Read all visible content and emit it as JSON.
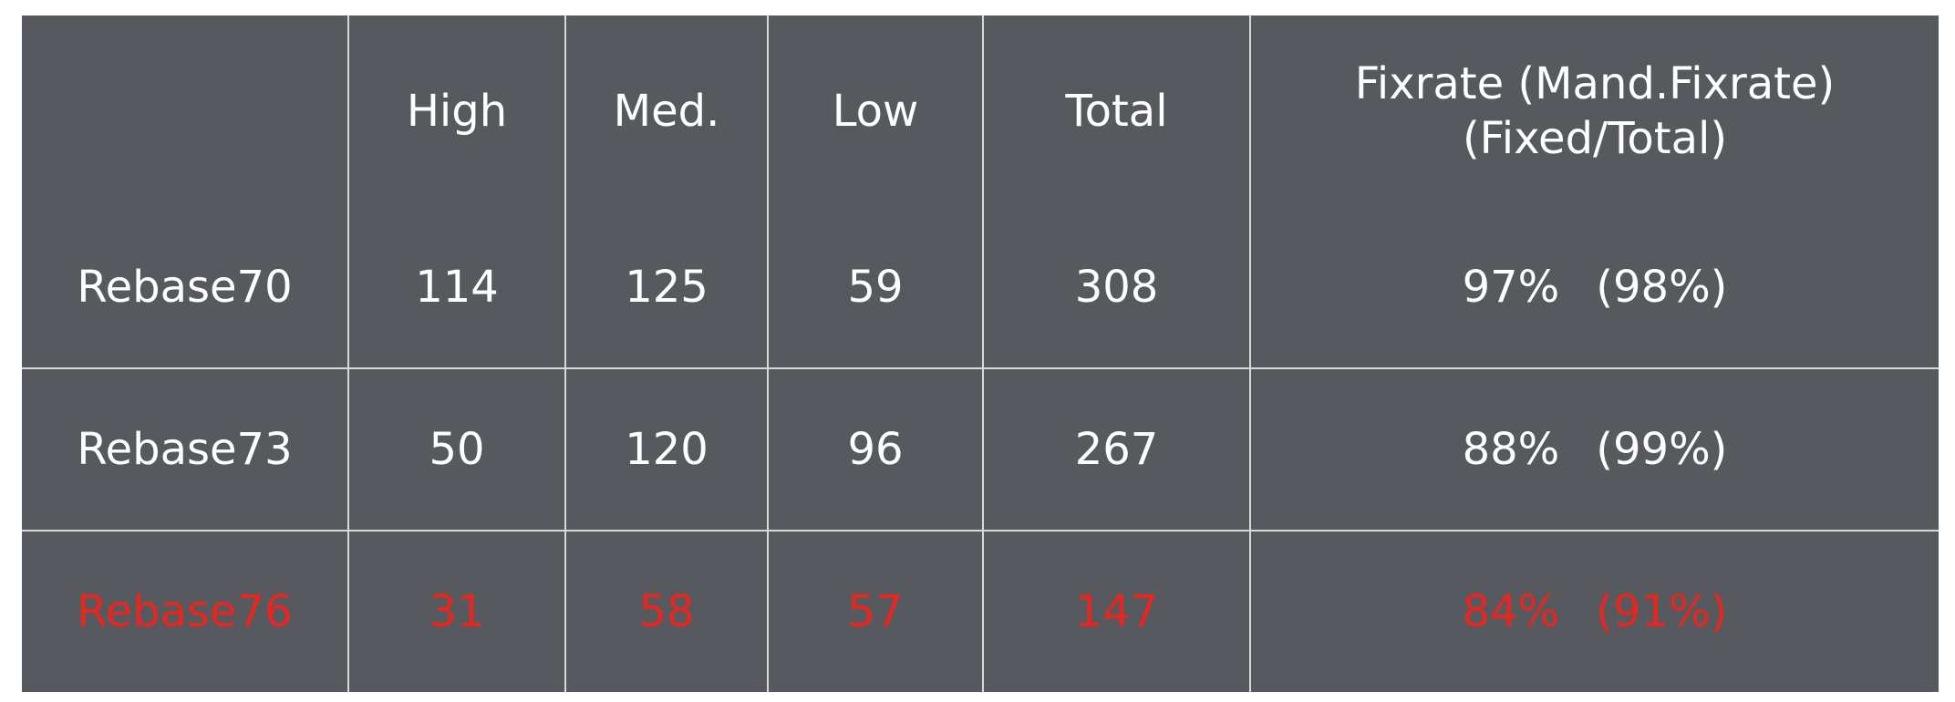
{
  "chart_data": {
    "type": "table",
    "columns": [
      "",
      "High",
      "Med.",
      "Low",
      "Total",
      "Fixrate (Mand.Fixrate)\n(Fixed/Total)"
    ],
    "header_fixrate_line1": "Fixrate (Mand.Fixrate)",
    "header_fixrate_line2": "(Fixed/Total)",
    "rows": [
      {
        "label": "Rebase70",
        "high": "114",
        "med": "125",
        "low": "59",
        "total": "308",
        "fixrate": "97%",
        "mand_fixrate": "(98%)",
        "highlight": false
      },
      {
        "label": "Rebase73",
        "high": "50",
        "med": "120",
        "low": "96",
        "total": "267",
        "fixrate": "88%",
        "mand_fixrate": "(99%)",
        "highlight": false
      },
      {
        "label": "Rebase76",
        "high": "31",
        "med": "58",
        "low": "57",
        "total": "147",
        "fixrate": "84%",
        "mand_fixrate": "(91%)",
        "highlight": true
      }
    ]
  },
  "header": {
    "blank": "",
    "high": "High",
    "med": "Med.",
    "low": "Low",
    "total": "Total",
    "fixrate_line1": "Fixrate (Mand.Fixrate)",
    "fixrate_line2": "(Fixed/Total)"
  },
  "colors": {
    "table_background": "#56595e",
    "grid_line": "#d9d9d9",
    "text": "#ffffff",
    "highlight_text": "#e8261f"
  }
}
